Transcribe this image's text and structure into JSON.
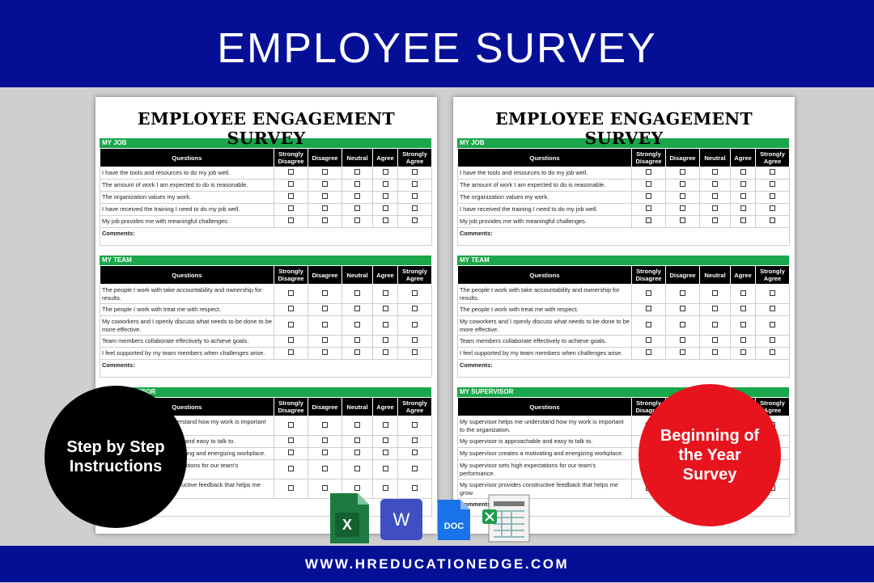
{
  "header": {
    "title": "EMPLOYEE SURVEY"
  },
  "survey": {
    "title": "EMPLOYEE ENGAGEMENT SURVEY",
    "columns": [
      "Questions",
      "Strongly Disagree",
      "Disagree",
      "Neutral",
      "Agree",
      "Strongly Agree"
    ],
    "comments": "Comments:",
    "sections": [
      {
        "name": "MY JOB",
        "questions": [
          "I have the tools and resources to do my job well.",
          "The amount of work I am expected to do is reasonable.",
          "The organization values my work.",
          "I have received the training I need to do my job well.",
          "My job provides me with meaningful challenges."
        ]
      },
      {
        "name": "MY TEAM",
        "questions": [
          "The people I work with take accountability and ownership for results.",
          "The people I work with treat me with respect.",
          "My coworkers and I openly discuss what needs to be done to be more effective.",
          "Team members collaborate effectively to achieve goals.",
          "I feel supported by my team members when challenges arise."
        ]
      },
      {
        "name": "MY SUPERVISOR",
        "questions": [
          "My supervisor helps me understand how my work is important to the organization.",
          "My supervisor is approachable and easy to talk to.",
          "My supervisor creates a motivating and energizing workplace.",
          "My supervisor sets high expectations for our team's performance.",
          "My supervisor provides constructive feedback that helps me grow."
        ]
      }
    ]
  },
  "badges": {
    "left": "Step by Step Instructions",
    "right": "Beginning of the Year Survey"
  },
  "icons": {
    "excel": "X",
    "word": "W",
    "doc": "DOC"
  },
  "footer": {
    "url": "WWW.HREDUCATIONEDGE.COM"
  }
}
